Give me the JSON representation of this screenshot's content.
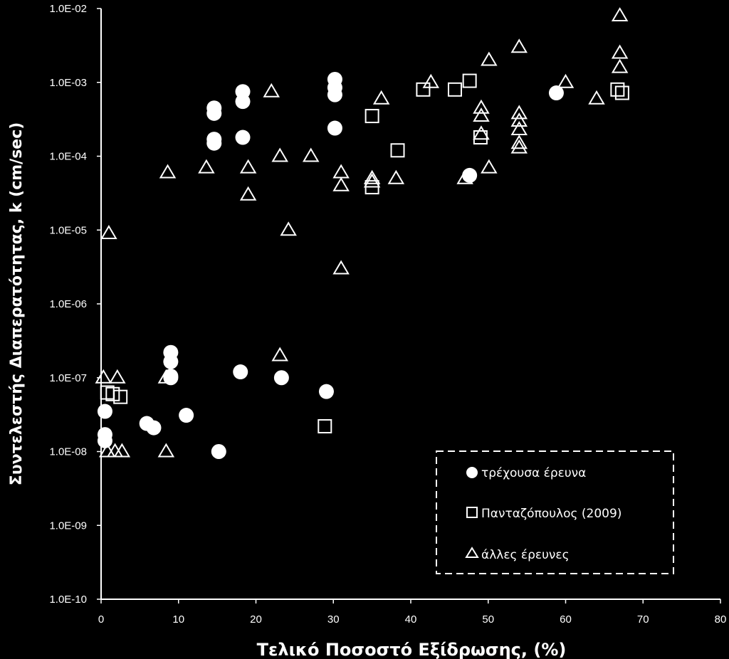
{
  "chart_data": {
    "type": "scatter",
    "title": "",
    "xlabel": "Τελικό Ποσοστό Εξίδρωσης, (%)",
    "ylabel": "Συντελεστής  Διαπερατότητας,  k  (cm/sec)",
    "xlim": [
      0,
      80
    ],
    "ylim": [
      1e-10,
      0.01
    ],
    "yscale": "log",
    "x_ticks": [
      "0",
      "10",
      "20",
      "30",
      "40",
      "50",
      "60",
      "70",
      "80"
    ],
    "y_ticks": [
      "1.0E-10",
      "1.0E-09",
      "1.0E-08",
      "1.0E-07",
      "1.0E-06",
      "1.0E-05",
      "1.0E-04",
      "1.0E-03",
      "1.0E-02"
    ],
    "grid": false,
    "legend_position": "bottom-right",
    "background": "#000000",
    "foreground": "#ffffff",
    "series": [
      {
        "name": "τρέχουσα έρευνα",
        "marker": "circle-filled",
        "points": [
          [
            14.6,
            0.00045
          ],
          [
            14.6,
            0.00038
          ],
          [
            14.6,
            0.00017
          ],
          [
            14.6,
            0.00015
          ],
          [
            18.3,
            0.00075
          ],
          [
            18.3,
            0.00055
          ],
          [
            18.3,
            0.00018
          ],
          [
            30.2,
            0.0011
          ],
          [
            30.2,
            0.00085
          ],
          [
            30.2,
            0.00068
          ],
          [
            30.2,
            0.00024
          ],
          [
            47.6,
            5.5e-05
          ],
          [
            58.8,
            0.00072
          ],
          [
            9.0,
            2.2e-07
          ],
          [
            9.0,
            1.65e-07
          ],
          [
            9.0,
            1.05e-07
          ],
          [
            9.0,
            1e-07
          ],
          [
            18.0,
            1.2e-07
          ],
          [
            23.3,
            1e-07
          ],
          [
            29.1,
            6.5e-08
          ],
          [
            0.5,
            3.5e-08
          ],
          [
            0.5,
            1.7e-08
          ],
          [
            0.5,
            1.4e-08
          ],
          [
            5.9,
            2.4e-08
          ],
          [
            6.8,
            2.1e-08
          ],
          [
            11.0,
            3.1e-08
          ],
          [
            15.2,
            1e-08
          ]
        ]
      },
      {
        "name": "Πανταζόπουλος (2009)",
        "marker": "square-open",
        "points": [
          [
            0.8,
            6.3e-08
          ],
          [
            1.5,
            6e-08
          ],
          [
            2.5,
            5.5e-08
          ],
          [
            28.9,
            2.2e-08
          ],
          [
            35.0,
            0.00035
          ],
          [
            35.0,
            3.8e-05
          ],
          [
            38.3,
            0.00012
          ],
          [
            41.6,
            0.0008
          ],
          [
            45.7,
            0.0008
          ],
          [
            47.6,
            0.00105
          ],
          [
            49.0,
            0.00018
          ],
          [
            66.7,
            0.0008
          ],
          [
            67.3,
            0.00072
          ]
        ]
      },
      {
        "name": "άλλες έρευνες",
        "marker": "triangle-open",
        "points": [
          [
            1.0,
            9e-06
          ],
          [
            0.3,
            1e-07
          ],
          [
            2.1,
            1e-07
          ],
          [
            0.8,
            1e-08
          ],
          [
            1.8,
            1e-08
          ],
          [
            2.7,
            1e-08
          ],
          [
            8.4,
            1e-07
          ],
          [
            8.4,
            1e-08
          ],
          [
            8.6,
            6e-05
          ],
          [
            13.6,
            7e-05
          ],
          [
            19.0,
            7e-05
          ],
          [
            19.0,
            3e-05
          ],
          [
            22.0,
            0.00075
          ],
          [
            23.1,
            0.0001
          ],
          [
            23.1,
            2e-07
          ],
          [
            24.2,
            1e-05
          ],
          [
            27.1,
            0.0001
          ],
          [
            31.0,
            6e-05
          ],
          [
            31.0,
            4e-05
          ],
          [
            31.0,
            3e-06
          ],
          [
            35.0,
            5e-05
          ],
          [
            35.0,
            4.5e-05
          ],
          [
            36.2,
            0.0006
          ],
          [
            38.1,
            5e-05
          ],
          [
            42.6,
            0.001
          ],
          [
            47.0,
            5e-05
          ],
          [
            49.1,
            0.00045
          ],
          [
            49.1,
            0.00035
          ],
          [
            49.1,
            0.0002
          ],
          [
            50.1,
            0.002
          ],
          [
            50.1,
            7e-05
          ],
          [
            54.0,
            0.003
          ],
          [
            54.0,
            0.00038
          ],
          [
            54.0,
            0.0003
          ],
          [
            54.0,
            0.00023
          ],
          [
            54.0,
            0.00015
          ],
          [
            54.0,
            0.00013
          ],
          [
            60.0,
            0.001
          ],
          [
            64.0,
            0.0006
          ],
          [
            67.0,
            0.008
          ],
          [
            67.0,
            0.0025
          ],
          [
            67.0,
            0.0016
          ]
        ]
      }
    ]
  }
}
